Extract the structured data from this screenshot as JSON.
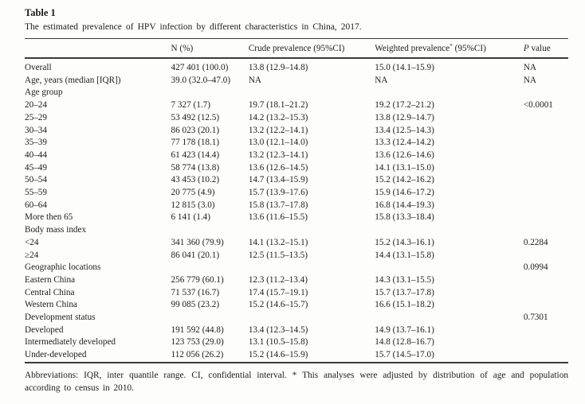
{
  "table": {
    "label": "Table 1",
    "caption": "The estimated prevalence of HPV infection by different characteristics in China, 2017.",
    "columns": {
      "characteristic": "",
      "n": "N (%)",
      "crude": "Crude prevalence (95%CI)",
      "weighted_prefix": "Weighted prevalence",
      "weighted_sup": "*",
      "weighted_suffix": " (95%CI)",
      "p_italic": "P",
      "p_rest": " value"
    },
    "rows": [
      {
        "label": "Overall",
        "n": "427 401 (100.0)",
        "crude": "13.8 (12.9–14.8)",
        "weighted": "15.0 (14.1–15.9)",
        "p": "NA"
      },
      {
        "label": "Age, years (median [IQR])",
        "n": "39.0 (32.0–47.0)",
        "crude": "NA",
        "weighted": "NA",
        "p": "NA"
      },
      {
        "label": "Age group",
        "n": "",
        "crude": "",
        "weighted": "",
        "p": ""
      },
      {
        "label": "20–24",
        "n": "7 327 (1.7)",
        "crude": "19.7 (18.1–21.2)",
        "weighted": "19.2 (17.2–21.2)",
        "p": "<0.0001"
      },
      {
        "label": "25–29",
        "n": "53 492 (12.5)",
        "crude": "14.2 (13.2–15.3)",
        "weighted": "13.8 (12.9–14.7)",
        "p": ""
      },
      {
        "label": "30–34",
        "n": "86 023 (20.1)",
        "crude": "13.2 (12.2–14.1)",
        "weighted": "13.4 (12.5–14.3)",
        "p": ""
      },
      {
        "label": "35–39",
        "n": "77 178 (18.1)",
        "crude": "13.0 (12.1–14.0)",
        "weighted": "13.3 (12.4–14.2)",
        "p": ""
      },
      {
        "label": "40–44",
        "n": "61 423 (14.4)",
        "crude": "13.2 (12.3–14.1)",
        "weighted": "13.6 (12.6–14.6)",
        "p": ""
      },
      {
        "label": "45–49",
        "n": "58 774 (13.8)",
        "crude": "13.6 (12.6–14.5)",
        "weighted": "14.1 (13.1–15.0)",
        "p": ""
      },
      {
        "label": "50–54",
        "n": "43 453 (10.2)",
        "crude": "14.7 (13.4–15.9)",
        "weighted": "15.2 (14.2–16.2)",
        "p": ""
      },
      {
        "label": "55–59",
        "n": "20 775 (4.9)",
        "crude": "15.7 (13.9–17.6)",
        "weighted": "15.9 (14.6–17.2)",
        "p": ""
      },
      {
        "label": "60–64",
        "n": "12 815 (3.0)",
        "crude": "15.8 (13.7–17.8)",
        "weighted": "16.8 (14.4–19.3)",
        "p": ""
      },
      {
        "label": "More then 65",
        "n": "6 141 (1.4)",
        "crude": "13.6 (11.6–15.5)",
        "weighted": "15.8 (13.3–18.4)",
        "p": ""
      },
      {
        "label": "Body mass index",
        "n": "",
        "crude": "",
        "weighted": "",
        "p": ""
      },
      {
        "label": "<24",
        "n": "341 360 (79.9)",
        "crude": "14.1 (13.2–15.1)",
        "weighted": "15.2 (14.3–16.1)",
        "p": "0.2284"
      },
      {
        "label": "≥24",
        "n": "86 041 (20.1)",
        "crude": "12.5 (11.5–13.5)",
        "weighted": "14.4 (13.1–15.8)",
        "p": ""
      },
      {
        "label": "Geographic locations",
        "n": "",
        "crude": "",
        "weighted": "",
        "p": "0.0994"
      },
      {
        "label": "Eastern China",
        "n": "256 779 (60.1)",
        "crude": "12.3 (11.2–13.4)",
        "weighted": "14.3 (13.1–15.5)",
        "p": ""
      },
      {
        "label": "Central China",
        "n": "71 537 (16.7)",
        "crude": "17.4 (15.7–19.1)",
        "weighted": "15.7 (13.7–17.8)",
        "p": ""
      },
      {
        "label": "Western China",
        "n": "99 085 (23.2)",
        "crude": "15.2 (14.6–15.7)",
        "weighted": "16.6 (15.1–18.2)",
        "p": ""
      },
      {
        "label": "Development status",
        "n": "",
        "crude": "",
        "weighted": "",
        "p": "0.7301"
      },
      {
        "label": "Developed",
        "n": "191 592 (44.8)",
        "crude": "13.4 (12.3–14.5)",
        "weighted": "14.9 (13.7–16.1)",
        "p": ""
      },
      {
        "label": "Intermediately developed",
        "n": "123 753 (29.0)",
        "crude": "13.1 (10.5–15.8)",
        "weighted": "14.8 (12.8–16.7)",
        "p": ""
      },
      {
        "label": "Under-developed",
        "n": "112 056 (26.2)",
        "crude": "15.2 (14.6–15.9)",
        "weighted": "15.7 (14.5–17.0)",
        "p": ""
      }
    ]
  },
  "footnote": "Abbreviations: IQR, inter quantile range. CI, confidential interval. * This analyses were adjusted by distribution of age and population according to census in 2010."
}
